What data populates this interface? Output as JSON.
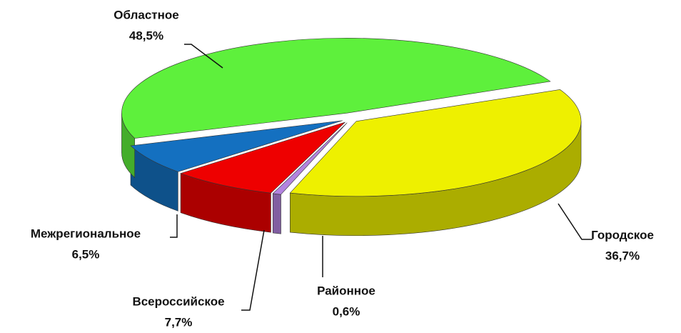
{
  "chart_data": {
    "type": "pie",
    "categories": [
      "Городское",
      "Районное",
      "Всероссийское",
      "Межрегиональное",
      "Областное"
    ],
    "values": [
      36.7,
      0.6,
      7.7,
      6.5,
      48.5
    ],
    "value_labels": [
      "36,7%",
      "0,6%",
      "7,7%",
      "6,5%",
      "48,5%"
    ],
    "colors": [
      "#eef000",
      "#b383e0",
      "#ee0000",
      "#1470c0",
      "#5ef03c"
    ]
  }
}
